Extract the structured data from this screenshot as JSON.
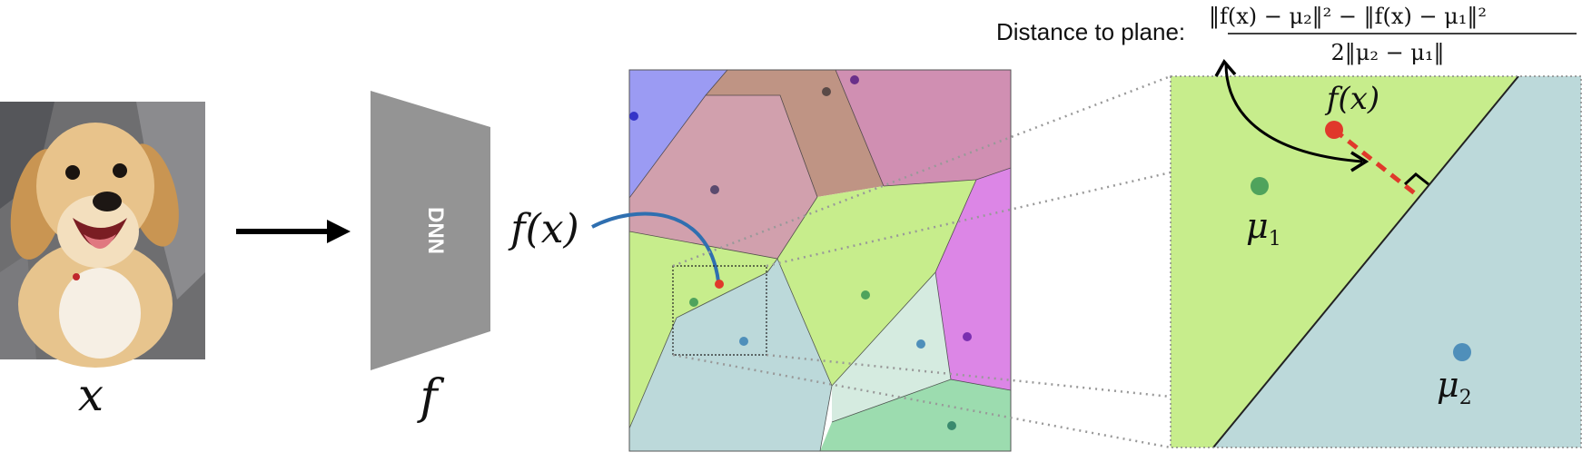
{
  "input_label": "x",
  "network_label": "DNN",
  "function_label": "f",
  "embedding_label": "f(x)",
  "zoom_embedding_label": "f(x)",
  "mu1_label": "μ",
  "mu1_sub": "1",
  "mu2_label": "μ",
  "mu2_sub": "2",
  "distance_caption": "Distance to plane:",
  "formula_numerator": "‖f(x) − μ₂‖² − ‖f(x) − μ₁‖²",
  "formula_denominator": "2‖μ₂ − μ₁‖",
  "colors": {
    "region_blue": "#9b9bf3",
    "region_brown": "#bf9484",
    "region_pink": "#d1a0ad",
    "region_rose": "#d08fb2",
    "region_green": "#c7ed8c",
    "region_teal": "#bcd9da",
    "region_magenta": "#dc86e6",
    "region_lightgreen": "#d5ebe0",
    "region_seagreen": "#9cdcaf",
    "point_red": "#e0392b",
    "point_green": "#4fa35c",
    "point_blue": "#4f8fba",
    "curve_blue": "#2f6fb0"
  }
}
